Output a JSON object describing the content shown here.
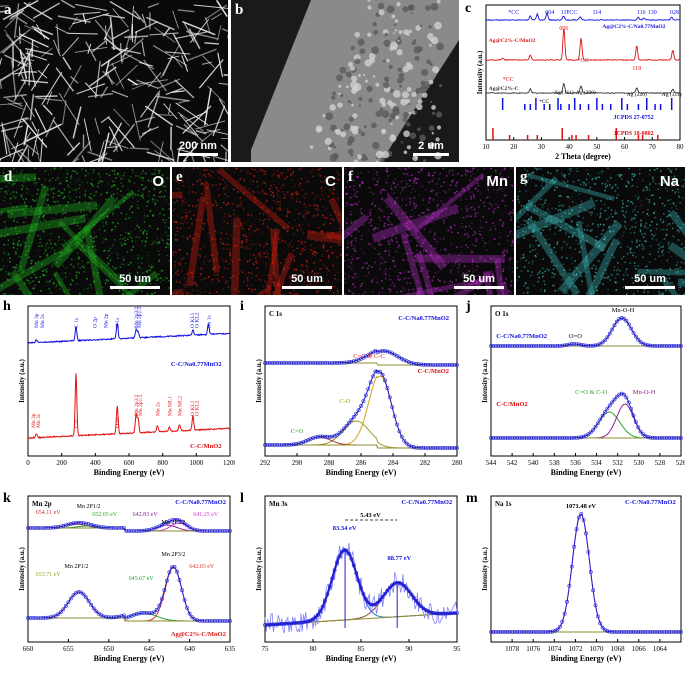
{
  "panels": {
    "a": {
      "label": "a",
      "scalebar": "200 nm"
    },
    "b": {
      "label": "b",
      "scalebar": "2 um"
    },
    "d": {
      "label": "d",
      "element": "O",
      "scalebar": "50 um",
      "color": "#22c422"
    },
    "e": {
      "label": "e",
      "element": "C",
      "scalebar": "50 um",
      "color": "#e02010"
    },
    "f": {
      "label": "f",
      "element": "Mn",
      "scalebar": "50 um",
      "color": "#c030d0"
    },
    "g": {
      "label": "g",
      "element": "Na",
      "scalebar": "50 um",
      "color": "#40c0c0"
    }
  },
  "chart_data": [
    {
      "id": "c",
      "label": "c",
      "type": "line",
      "xlabel": "2 Theta (degree)",
      "ylabel": "Intensity (a.u.)",
      "xlim": [
        10,
        80
      ],
      "xticks": [
        10,
        20,
        30,
        40,
        50,
        60,
        70,
        80
      ],
      "series": [
        {
          "name": "Ag@C/Na0.77MnO2",
          "color": "#1010e0"
        },
        {
          "name": "Ag@C/MnO2",
          "color": "#e01010"
        },
        {
          "name": "Ag@C",
          "color": "#333333"
        },
        {
          "name": "JCPDS 27-0752",
          "color": "#1010e0"
        },
        {
          "name": "JCPDS 18-0802",
          "color": "#e01010"
        }
      ],
      "annotations": {
        "top": [
          "*CC",
          "004",
          "*CC",
          "114",
          "111",
          "116",
          "130",
          "028"
        ],
        "red": [
          "006",
          "*CC",
          "119",
          "*CC"
        ],
        "gray": [
          "Ag (111)",
          "Ag (200)",
          "Ag (220)",
          "Ag (311)",
          "*CC"
        ],
        "labels": {
          "nmo": "Ag@C2%-C/Na0.77MnO2",
          "mno": "Ag@C2%-C/MnO2",
          "agc": "Ag@C2%-C",
          "jc1": "JCPDS 27-0752",
          "jc2": "JCPDS 18-0802"
        }
      }
    },
    {
      "id": "h",
      "label": "h",
      "type": "line",
      "xlabel": "Binding Energy (eV)",
      "ylabel": "Intensity (a.u.)",
      "xlim": [
        0,
        1200
      ],
      "xticks": [
        0,
        200,
        400,
        600,
        800,
        1000,
        1200
      ],
      "series": [
        {
          "name": "C-C/Na0.77MnO2",
          "color": "#1010e0"
        },
        {
          "name": "C-C/MnO2",
          "color": "#e01010"
        }
      ],
      "annotations": {
        "blue": [
          "Mn 3p",
          "Mn 2s",
          "C 1s",
          "O 2p",
          "Mn 2p",
          "O 1s",
          "Mn 2p3/2",
          "Mn 2p1/2",
          "O KL1",
          "O KL2",
          "Na 1s"
        ],
        "red": [
          "Mn 3p",
          "Mn 3s",
          "C1s",
          "O 1s",
          "Mn 2p3/2",
          "Mn 2p1/2",
          "Mn 2s",
          "Mn ML1",
          "Mn ML2",
          "O KL1",
          "O KL2"
        ],
        "labels": {
          "blue": "C-C/Na0.77MnO2",
          "red": "C-C/MnO2"
        }
      }
    },
    {
      "id": "i",
      "label": "i",
      "type": "line",
      "title": "C 1s",
      "xlabel": "Binding Energy (eV)",
      "ylabel": "Intensity (a.u.)",
      "xlim": [
        292,
        280
      ],
      "xticks": [
        292,
        290,
        288,
        286,
        284,
        282,
        280
      ],
      "series": [
        {
          "name": "C-C/Na0.77MnO2"
        },
        {
          "name": "C-C/MnO2"
        }
      ],
      "annotations": {
        "peaks": [
          "C=C & C-C",
          "C-O",
          "C=O"
        ],
        "labels": {
          "top": "C-C/Na0.77MnO2",
          "bottom": "C-C/MnO2"
        }
      }
    },
    {
      "id": "j",
      "label": "j",
      "type": "line",
      "title": "O 1s",
      "xlabel": "Binding Energy (eV)",
      "ylabel": "Intensity (a.u.)",
      "xlim": [
        544,
        526
      ],
      "xticks": [
        544,
        542,
        540,
        538,
        536,
        534,
        532,
        530,
        528,
        526
      ],
      "series": [
        {
          "name": "C-C/Na0.77MnO2"
        },
        {
          "name": "C-C/MnO2"
        }
      ],
      "annotations": {
        "peaks": [
          "Mn-O-H",
          "O=O",
          "C=O & C-O",
          "Mn-O-H"
        ],
        "labels": {
          "top": "C-C/Na0.77MnO2",
          "bottom": "C-C/MnO2"
        }
      }
    },
    {
      "id": "k",
      "label": "k",
      "type": "line",
      "title": "Mn 2p",
      "xlabel": "Binding Energy (eV)",
      "ylabel": "Intensity (a.u.)",
      "xlim": [
        660,
        635
      ],
      "xticks": [
        660,
        655,
        650,
        645,
        640,
        635
      ],
      "series": [
        {
          "name": "C-C/Na0.77MnO2"
        },
        {
          "name": "Ag@C2%-C/MnO2"
        }
      ],
      "annotations": {
        "peaks": [
          "654.11 eV",
          "Mn 2P1/2",
          "652.65 eV",
          "642.83 eV",
          "Mn 2P3/2",
          "641.25 eV",
          "653.71 eV",
          "Mn 2P1/2",
          "645.67 eV",
          "Mn 2P3/2",
          "642.03 eV"
        ],
        "labels": {
          "top": "C-C/Na0.77MnO2",
          "bottom": "Ag@C2%-C/MnO2"
        }
      }
    },
    {
      "id": "l",
      "label": "l",
      "type": "line",
      "title": "Mn 3s",
      "xlabel": "Binding Energy (eV)",
      "ylabel": "Intensity (a.u.)",
      "xlim": [
        75,
        95
      ],
      "xticks": [
        75,
        80,
        85,
        90,
        95
      ],
      "series": [
        {
          "name": "C-C/Na0.77MnO2"
        }
      ],
      "annotations": {
        "peaks": [
          "83.34 eV",
          "5.43 eV",
          "88.77 eV"
        ],
        "labels": {
          "top": "C-C/Na0.77MnO2"
        }
      }
    },
    {
      "id": "m",
      "label": "m",
      "type": "line",
      "title": "Na 1s",
      "xlabel": "Binding Energy (eV)",
      "ylabel": "Intensity (a.u.)",
      "xlim": [
        1080,
        1062
      ],
      "xticks": [
        1078,
        1076,
        1074,
        1072,
        1070,
        1068,
        1066,
        1064
      ],
      "series": [
        {
          "name": "C-C/Na0.77MnO2"
        }
      ],
      "annotations": {
        "peaks": [
          "1071.48 eV"
        ],
        "labels": {
          "top": "C-C/Na0.77MnO2"
        }
      }
    }
  ]
}
